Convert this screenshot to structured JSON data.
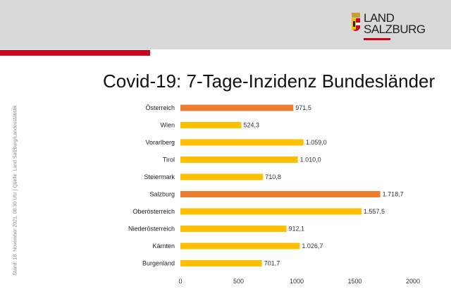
{
  "header": {
    "logo_line1": "LAND",
    "logo_line2": "SALZBURG"
  },
  "side_note": "Stand: 18. November 2021, 08.30 Uhr | Quelle: Land Salzburg/Landesstatistik",
  "chart_data": {
    "type": "bar",
    "orientation": "horizontal",
    "title": "Covid-19: 7-Tage-Inzidenz Bundesländer",
    "categories": [
      "Österreich",
      "Wien",
      "Vorarlberg",
      "Tirol",
      "Steiermark",
      "Salzburg",
      "Oberösterreich",
      "Niederösterreich",
      "Kärnten",
      "Burgenland"
    ],
    "values": [
      971.5,
      524.3,
      1059.0,
      1010.0,
      710.8,
      1718.7,
      1557.5,
      912.1,
      1026.7,
      701.7
    ],
    "value_labels": [
      "971,5",
      "524,3",
      "1.059,0",
      "1.010,0",
      "710,8",
      "1.718,7",
      "1.557,5",
      "912,1",
      "1.026,7",
      "701,7"
    ],
    "highlight": [
      "Österreich",
      "Salzburg"
    ],
    "colors": {
      "default": "#ffc000",
      "highlight": "#ed7d31"
    },
    "xlim": [
      0,
      2000
    ],
    "xticks": [
      "0",
      "500",
      "1000",
      "1500",
      "2000"
    ],
    "xlabel": "",
    "ylabel": "",
    "grid": false
  }
}
